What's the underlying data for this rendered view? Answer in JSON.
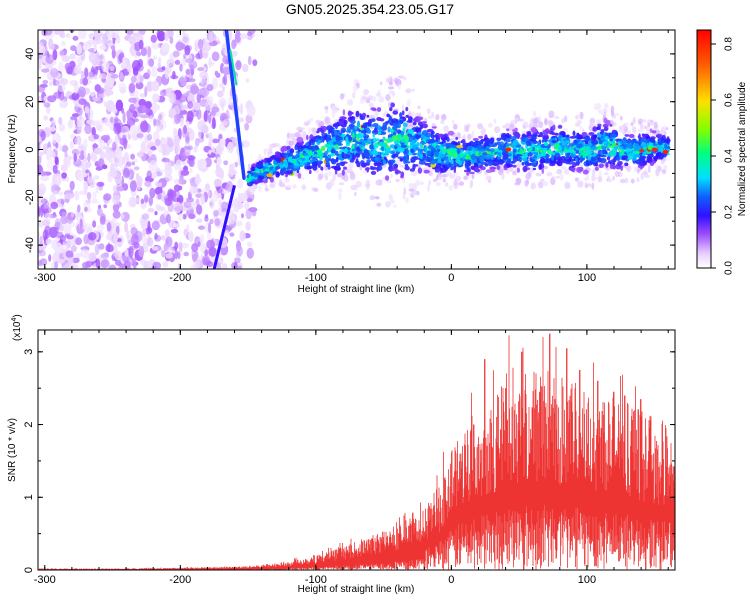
{
  "title": "GN05.2025.354.23.05.G17",
  "chart_data": [
    {
      "type": "heatmap",
      "title": "GN05.2025.354.23.05.G17",
      "xlabel": "Height of straight line (km)",
      "ylabel": "Frequency (Hz)",
      "xlim": [
        -305,
        165
      ],
      "ylim": [
        -50,
        50
      ],
      "xticks": [
        -300,
        -200,
        -100,
        0,
        100
      ],
      "yticks": [
        40,
        20,
        0,
        -20,
        -40
      ],
      "xtick_labels": [
        "-300",
        "-200",
        "-100",
        "0",
        "100"
      ],
      "ytick_labels": [
        "40",
        "20",
        "0",
        "-20",
        "-40"
      ],
      "colorbar": {
        "label": "Normalized spectral amplitude",
        "range": [
          0,
          0.85
        ],
        "ticks": [
          0.0,
          0.2,
          0.4,
          0.6,
          0.8
        ],
        "tick_labels": [
          "0.0",
          "0.2",
          "0.4",
          "0.6",
          "0.8"
        ],
        "colors": [
          "#ffffff",
          "#e8d0ff",
          "#a050ff",
          "#3010ff",
          "#1060ff",
          "#00e0ff",
          "#00ff80",
          "#80ff00",
          "#ffe000",
          "#ff6000",
          "#ff0000"
        ]
      },
      "noise_region_x": [
        -305,
        -145
      ],
      "noise_fade_x": [
        -160,
        -140
      ],
      "diagonal_trace": {
        "x_at_top": -163,
        "x_at_bottom": -160,
        "x_at_freq_minus50": -175
      },
      "signal_band": {
        "x": [
          -150,
          -140,
          -130,
          -120,
          -110,
          -100,
          -90,
          -80,
          -70,
          -60,
          -50,
          -40,
          -30,
          -20,
          -10,
          0,
          10,
          20,
          30,
          40,
          50,
          60,
          70,
          80,
          90,
          100,
          110,
          120,
          130,
          140,
          150,
          160
        ],
        "center_hz": [
          -12,
          -9,
          -7,
          -5,
          -3,
          -1,
          1,
          2,
          4,
          3,
          2,
          5,
          3,
          1,
          -1,
          -2,
          -3,
          -2,
          -1,
          0,
          0,
          -1,
          0,
          1,
          0,
          -1,
          2,
          1,
          -1,
          0,
          1,
          0
        ],
        "halfwidth_hz": [
          4,
          5,
          6,
          7,
          8,
          10,
          12,
          14,
          15,
          16,
          16,
          18,
          15,
          12,
          10,
          9,
          8,
          8,
          8,
          9,
          9,
          10,
          9,
          10,
          10,
          9,
          11,
          10,
          8,
          8,
          7,
          6
        ]
      }
    },
    {
      "type": "line",
      "xlabel": "Height of straight line (km)",
      "ylabel": "SNR (10 * v/v)",
      "scale_label_main": "(x10",
      "scale_label_exp": "4",
      "scale_label_close": ")",
      "xlim": [
        -305,
        165
      ],
      "ylim": [
        0,
        3.3
      ],
      "xticks": [
        -300,
        -200,
        -100,
        0,
        100
      ],
      "yticks": [
        0,
        1,
        2,
        3
      ],
      "xtick_labels": [
        "-300",
        "-200",
        "-100",
        "0",
        "100"
      ],
      "ytick_labels": [
        "0",
        "1",
        "2",
        "3"
      ],
      "color": "#ee3333",
      "series": [
        {
          "name": "SNR",
          "x": [
            -305,
            -250,
            -200,
            -150,
            -125,
            -100,
            -80,
            -60,
            -40,
            -20,
            -10,
            0,
            10,
            20,
            30,
            40,
            50,
            60,
            70,
            80,
            90,
            100,
            110,
            120,
            130,
            140,
            150,
            165
          ],
          "envelope": [
            0.02,
            0.02,
            0.03,
            0.05,
            0.1,
            0.2,
            0.3,
            0.45,
            0.6,
            0.8,
            1.1,
            1.6,
            2.0,
            2.2,
            2.3,
            2.5,
            2.6,
            2.6,
            2.6,
            2.5,
            2.5,
            2.4,
            2.4,
            2.3,
            2.2,
            2.1,
            2.0,
            1.9
          ],
          "peaks": [
            [
              17,
              2.0
            ],
            [
              25,
              2.9
            ],
            [
              40,
              2.5
            ],
            [
              52,
              3.0
            ],
            [
              73,
              3.25
            ],
            [
              85,
              3.05
            ],
            [
              95,
              2.75
            ],
            [
              108,
              2.6
            ],
            [
              120,
              2.45
            ],
            [
              128,
              2.4
            ],
            [
              140,
              2.35
            ]
          ]
        }
      ]
    }
  ]
}
